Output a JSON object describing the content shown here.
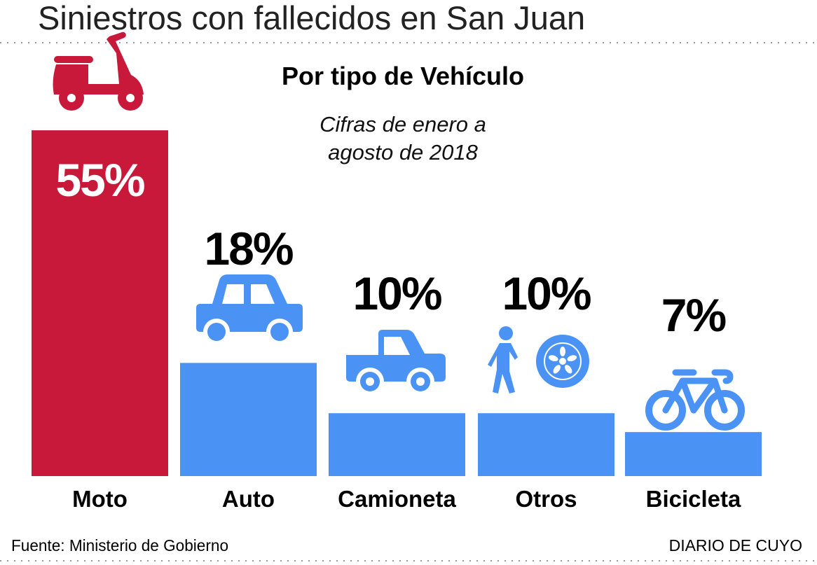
{
  "title": "Siniestros con fallecidos en San Juan",
  "chart_data": {
    "type": "bar",
    "title": "Por tipo de Vehículo",
    "subtitle": [
      "Cifras de enero a",
      "agosto de 2018"
    ],
    "categories": [
      "Moto",
      "Auto",
      "Camioneta",
      "Otros",
      "Bicicleta"
    ],
    "values": [
      55,
      18,
      10,
      10,
      7
    ],
    "value_labels": [
      "55%",
      "18%",
      "10%",
      "10%",
      "7%"
    ],
    "icons": [
      "scooter-icon",
      "car-icon",
      "pickup-truck-icon",
      "pedestrian-and-wheel-icon",
      "bicycle-icon"
    ],
    "colors": [
      "#c8193a",
      "#4a93f5",
      "#4a93f5",
      "#4a93f5",
      "#4a93f5"
    ],
    "unit": "%",
    "grid": false
  },
  "footer": {
    "source": "Fuente: Ministerio de Gobierno",
    "brand": "DIARIO DE CUYO"
  }
}
